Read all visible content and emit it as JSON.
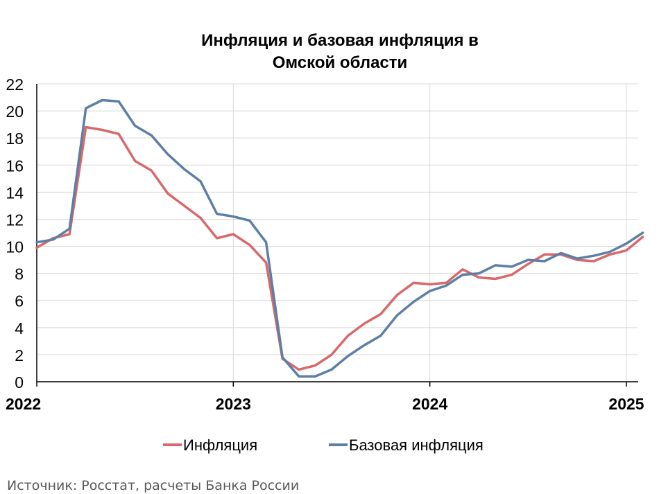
{
  "chart_data": {
    "type": "line",
    "title_lines": [
      "Инфляция и базовая инфляция в",
      "Омской области"
    ],
    "xlim": [
      2022.0,
      2025.1
    ],
    "ylim": [
      0,
      22
    ],
    "y_ticks": [
      "0",
      "2",
      "4",
      "6",
      "8",
      "10",
      "12",
      "14",
      "16",
      "18",
      "20",
      "22"
    ],
    "x_ticks": [
      {
        "value": 2022,
        "label": "2022"
      },
      {
        "value": 2023,
        "label": "2023"
      },
      {
        "value": 2024,
        "label": "2024"
      },
      {
        "value": 2025,
        "label": "2025"
      }
    ],
    "grid": true,
    "legend_position": "bottom",
    "series": [
      {
        "name": "Инфляция",
        "color": "#d9686a",
        "values": [
          9.9,
          10.6,
          10.9,
          18.8,
          18.6,
          18.3,
          16.3,
          15.6,
          13.9,
          13.0,
          12.1,
          10.6,
          10.9,
          10.1,
          8.8,
          1.7,
          0.9,
          1.2,
          2.0,
          3.4,
          4.3,
          5.0,
          6.4,
          7.3,
          7.2,
          7.3,
          8.3,
          7.7,
          7.6,
          7.9,
          8.7,
          9.4,
          9.4,
          9.0,
          8.9,
          9.4,
          9.7,
          10.7
        ]
      },
      {
        "name": "Базовая инфляция",
        "color": "#5b7fa6",
        "values": [
          10.3,
          10.5,
          11.3,
          20.2,
          20.8,
          20.7,
          18.9,
          18.2,
          16.8,
          15.7,
          14.8,
          12.4,
          12.2,
          11.9,
          10.3,
          1.8,
          0.4,
          0.4,
          0.9,
          1.9,
          2.7,
          3.4,
          4.9,
          5.9,
          6.7,
          7.1,
          7.9,
          8.0,
          8.6,
          8.5,
          9.0,
          8.9,
          9.5,
          9.1,
          9.3,
          9.6,
          10.2,
          11.0
        ]
      }
    ]
  },
  "source": "Источник: Росстат, расчеты Банка России"
}
